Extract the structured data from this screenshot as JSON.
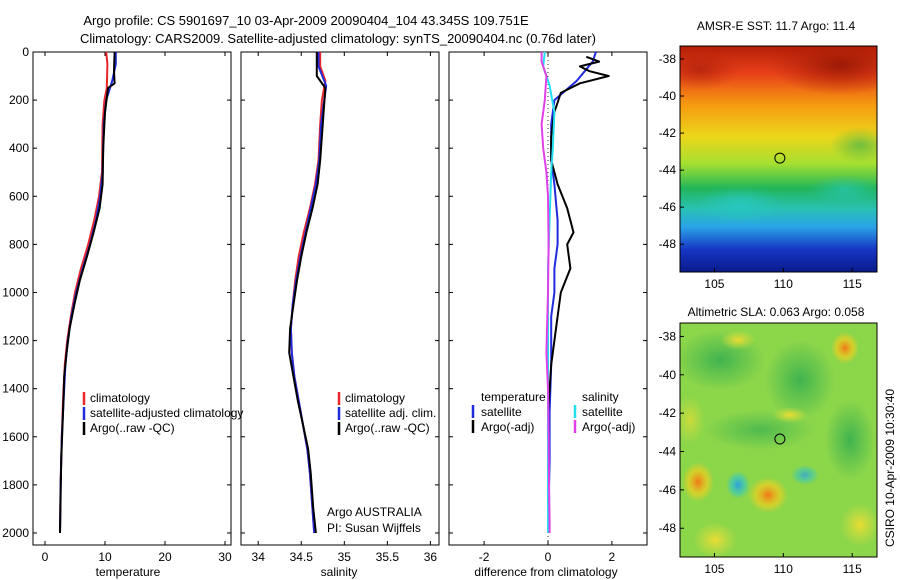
{
  "header": {
    "title_line1": "Argo profile: CS 5901697_10 03-Apr-2009 20090404_104 43.345S 109.751E",
    "title_line2": "Climatology: CARS2009. Satellite-adjusted climatology: synTS_20090404.nc (0.76d later)"
  },
  "side_label": "CSIRO 10-Apr-2009 10:30:40",
  "colors": {
    "climatology": "#e8262b",
    "satellite": "#1f2bdd",
    "argo": "#000000",
    "satellite_sal": "#22e0f0",
    "argo_sal": "#e040e8"
  },
  "chart_data": [
    {
      "id": "temperature",
      "type": "line",
      "xlabel": "temperature",
      "ylabel": "",
      "xlim": [
        -2,
        31
      ],
      "ylim": [
        2050,
        0
      ],
      "xticks": [
        "0",
        "10",
        "20",
        "30"
      ],
      "xtick_values": [
        0,
        10,
        20,
        30
      ],
      "yticks": [
        "0",
        "200",
        "400",
        "600",
        "800",
        "1000",
        "1200",
        "1400",
        "1600",
        "1800",
        "2000"
      ],
      "ytick_values": [
        0,
        200,
        400,
        600,
        800,
        1000,
        1200,
        1400,
        1600,
        1800,
        2000
      ],
      "legend": [
        "climatology",
        "satellite-adjusted climatology",
        "Argo(..raw -QC)"
      ],
      "legend_position": "lower-right",
      "series": [
        {
          "name": "climatology",
          "color_key": "climatology",
          "points": [
            [
              10.2,
              0
            ],
            [
              10.4,
              50
            ],
            [
              10.3,
              150
            ],
            [
              9.9,
              200
            ],
            [
              9.6,
              300
            ],
            [
              9.5,
              500
            ],
            [
              9.0,
              600
            ],
            [
              8.2,
              700
            ],
            [
              7.2,
              800
            ],
            [
              6.0,
              900
            ],
            [
              5.0,
              1000
            ],
            [
              4.3,
              1100
            ],
            [
              3.7,
              1200
            ],
            [
              3.3,
              1300
            ],
            [
              3.0,
              1450
            ],
            [
              2.8,
              1600
            ],
            [
              2.6,
              1800
            ],
            [
              2.5,
              2000
            ]
          ]
        },
        {
          "name": "satellite-adjusted climatology",
          "color_key": "satellite",
          "points": [
            [
              11.8,
              0
            ],
            [
              11.8,
              50
            ],
            [
              11.2,
              120
            ],
            [
              10.2,
              200
            ],
            [
              9.8,
              300
            ],
            [
              9.6,
              500
            ],
            [
              9.2,
              600
            ],
            [
              8.5,
              700
            ],
            [
              7.5,
              800
            ],
            [
              6.3,
              900
            ],
            [
              5.2,
              1000
            ],
            [
              4.4,
              1100
            ],
            [
              3.8,
              1200
            ],
            [
              3.4,
              1300
            ],
            [
              3.1,
              1450
            ],
            [
              2.8,
              1600
            ],
            [
              2.6,
              1800
            ],
            [
              2.5,
              2000
            ]
          ]
        },
        {
          "name": "Argo(..raw -QC)",
          "color_key": "argo",
          "points": [
            [
              11.6,
              0
            ],
            [
              11.5,
              80
            ],
            [
              11.6,
              130
            ],
            [
              10.5,
              150
            ],
            [
              10.0,
              250
            ],
            [
              9.7,
              400
            ],
            [
              9.6,
              550
            ],
            [
              9.1,
              650
            ],
            [
              8.1,
              750
            ],
            [
              7.0,
              850
            ],
            [
              5.8,
              950
            ],
            [
              4.9,
              1050
            ],
            [
              4.1,
              1150
            ],
            [
              3.6,
              1250
            ],
            [
              3.2,
              1350
            ],
            [
              3.0,
              1500
            ],
            [
              2.7,
              1700
            ],
            [
              2.5,
              2000
            ]
          ]
        }
      ]
    },
    {
      "id": "salinity",
      "type": "line",
      "xlabel": "salinity",
      "ylabel": "",
      "xlim": [
        33.8,
        36.1
      ],
      "ylim": [
        2050,
        0
      ],
      "xticks": [
        "34",
        "34.5",
        "35",
        "35.5",
        "36"
      ],
      "xtick_values": [
        34,
        34.5,
        35,
        35.5,
        36
      ],
      "legend": [
        "climatology",
        "satellite adj. clim.",
        "Argo(..raw -QC)"
      ],
      "legend_position": "lower-right",
      "annotation": [
        "Argo AUSTRALIA",
        "PI: Susan Wijffels"
      ],
      "series": [
        {
          "name": "climatology",
          "color_key": "climatology",
          "points": [
            [
              34.72,
              0
            ],
            [
              34.72,
              60
            ],
            [
              34.78,
              120
            ],
            [
              34.74,
              200
            ],
            [
              34.72,
              300
            ],
            [
              34.7,
              450
            ],
            [
              34.66,
              550
            ],
            [
              34.6,
              650
            ],
            [
              34.53,
              750
            ],
            [
              34.47,
              850
            ],
            [
              34.43,
              950
            ],
            [
              34.4,
              1050
            ],
            [
              34.38,
              1150
            ],
            [
              34.39,
              1250
            ],
            [
              34.42,
              1350
            ],
            [
              34.47,
              1450
            ],
            [
              34.52,
              1550
            ],
            [
              34.57,
              1650
            ],
            [
              34.6,
              1750
            ],
            [
              34.63,
              1900
            ],
            [
              34.65,
              2000
            ]
          ]
        },
        {
          "name": "satellite adj. clim.",
          "color_key": "satellite",
          "points": [
            [
              34.7,
              0
            ],
            [
              34.7,
              60
            ],
            [
              34.79,
              140
            ],
            [
              34.76,
              220
            ],
            [
              34.73,
              300
            ],
            [
              34.71,
              450
            ],
            [
              34.67,
              550
            ],
            [
              34.61,
              650
            ],
            [
              34.55,
              750
            ],
            [
              34.49,
              850
            ],
            [
              34.44,
              950
            ],
            [
              34.4,
              1050
            ],
            [
              34.38,
              1150
            ],
            [
              34.39,
              1250
            ],
            [
              34.42,
              1350
            ],
            [
              34.47,
              1450
            ],
            [
              34.52,
              1550
            ],
            [
              34.57,
              1650
            ],
            [
              34.6,
              1750
            ],
            [
              34.63,
              1900
            ],
            [
              34.65,
              2000
            ]
          ]
        },
        {
          "name": "Argo(..raw -QC)",
          "color_key": "argo",
          "points": [
            [
              34.68,
              0
            ],
            [
              34.68,
              100
            ],
            [
              34.78,
              150
            ],
            [
              34.76,
              250
            ],
            [
              34.74,
              350
            ],
            [
              34.72,
              450
            ],
            [
              34.69,
              550
            ],
            [
              34.63,
              650
            ],
            [
              34.56,
              750
            ],
            [
              34.5,
              850
            ],
            [
              34.45,
              950
            ],
            [
              34.41,
              1050
            ],
            [
              34.37,
              1150
            ],
            [
              34.36,
              1250
            ],
            [
              34.41,
              1350
            ],
            [
              34.46,
              1450
            ],
            [
              34.52,
              1550
            ],
            [
              34.58,
              1650
            ],
            [
              34.61,
              1750
            ],
            [
              34.64,
              1900
            ],
            [
              34.67,
              2000
            ]
          ]
        }
      ]
    },
    {
      "id": "difference",
      "type": "line",
      "xlabel": "difference from climatology",
      "ylabel": "",
      "xlim": [
        -3.1,
        3.1
      ],
      "ylim": [
        2050,
        0
      ],
      "xticks": [
        "-2",
        "0",
        "2"
      ],
      "xtick_values": [
        -2,
        0,
        2
      ],
      "legend_headers": [
        "temperature",
        "salinity"
      ],
      "legend": [
        "satellite",
        "Argo(-adj)",
        "satellite",
        "Argo(-adj)"
      ],
      "legend_position": "lower-center",
      "series": [
        {
          "name": "temperature satellite",
          "color_key": "satellite",
          "points": [
            [
              1.5,
              0
            ],
            [
              1.4,
              40
            ],
            [
              0.9,
              120
            ],
            [
              0.2,
              200
            ],
            [
              0.1,
              300
            ],
            [
              0.1,
              450
            ],
            [
              0.2,
              550
            ],
            [
              0.3,
              700
            ],
            [
              0.3,
              800
            ],
            [
              0.2,
              900
            ],
            [
              0.2,
              1000
            ],
            [
              0.1,
              1100
            ],
            [
              0.1,
              1200
            ],
            [
              0.1,
              1300
            ],
            [
              0.05,
              1500
            ],
            [
              0.05,
              1700
            ],
            [
              0.0,
              2000
            ]
          ]
        },
        {
          "name": "temperature Argo(-adj)",
          "color_key": "argo",
          "points": [
            [
              1.2,
              20
            ],
            [
              1.6,
              40
            ],
            [
              1.0,
              60
            ],
            [
              1.3,
              80
            ],
            [
              1.9,
              100
            ],
            [
              1.0,
              130
            ],
            [
              0.4,
              170
            ],
            [
              0.2,
              250
            ],
            [
              0.1,
              350
            ],
            [
              0.1,
              450
            ],
            [
              0.3,
              550
            ],
            [
              0.6,
              650
            ],
            [
              0.8,
              750
            ],
            [
              0.6,
              800
            ],
            [
              0.7,
              900
            ],
            [
              0.4,
              1000
            ],
            [
              0.3,
              1100
            ],
            [
              0.2,
              1200
            ],
            [
              0.1,
              1300
            ],
            [
              0.0,
              1500
            ],
            [
              0.0,
              1700
            ],
            [
              0.0,
              2000
            ]
          ]
        },
        {
          "name": "salinity satellite",
          "color_key": "satellite_sal",
          "points": [
            [
              -0.1,
              0
            ],
            [
              -0.15,
              60
            ],
            [
              0.05,
              140
            ],
            [
              0.2,
              250
            ],
            [
              0.15,
              400
            ],
            [
              0.1,
              500
            ],
            [
              0.05,
              700
            ],
            [
              0.0,
              900
            ],
            [
              0.0,
              1100
            ],
            [
              0.0,
              1300
            ],
            [
              0.0,
              1500
            ],
            [
              0.0,
              1700
            ],
            [
              0.0,
              2000
            ]
          ]
        },
        {
          "name": "salinity Argo(-adj)",
          "color_key": "argo_sal",
          "points": [
            [
              -0.2,
              0
            ],
            [
              -0.2,
              40
            ],
            [
              -0.05,
              100
            ],
            [
              -0.1,
              200
            ],
            [
              -0.2,
              300
            ],
            [
              -0.15,
              400
            ],
            [
              -0.05,
              500
            ],
            [
              0.0,
              600
            ],
            [
              0.02,
              800
            ],
            [
              0.0,
              1000
            ],
            [
              -0.03,
              1150
            ],
            [
              -0.05,
              1250
            ],
            [
              0.0,
              1400
            ],
            [
              0.02,
              1600
            ],
            [
              0.03,
              1800
            ],
            [
              0.05,
              1950
            ],
            [
              0.05,
              2000
            ]
          ]
        }
      ]
    },
    {
      "id": "sst_map",
      "type": "heatmap",
      "title": "AMSR-E SST: 11.7 Argo: 11.4",
      "xlim": [
        102.5,
        116.8
      ],
      "ylim": [
        -49.5,
        -37.3
      ],
      "xticks": [
        "105",
        "110",
        "115"
      ],
      "xtick_values": [
        105,
        110,
        115
      ],
      "yticks": [
        "-38",
        "-40",
        "-42",
        "-44",
        "-46",
        "-48"
      ],
      "ytick_values": [
        -38,
        -40,
        -42,
        -44,
        -46,
        -48
      ],
      "marker": {
        "lon": 109.75,
        "lat": -43.35
      }
    },
    {
      "id": "sla_map",
      "type": "heatmap",
      "title": "Altimetric SLA: 0.063 Argo: 0.058",
      "xlim": [
        102.5,
        116.8
      ],
      "ylim": [
        -49.5,
        -37.3
      ],
      "xticks": [
        "105",
        "110",
        "115"
      ],
      "xtick_values": [
        105,
        110,
        115
      ],
      "yticks": [
        "-38",
        "-40",
        "-42",
        "-44",
        "-46",
        "-48"
      ],
      "ytick_values": [
        -38,
        -40,
        -42,
        -44,
        -46,
        -48
      ],
      "marker": {
        "lon": 109.75,
        "lat": -43.35
      }
    }
  ]
}
